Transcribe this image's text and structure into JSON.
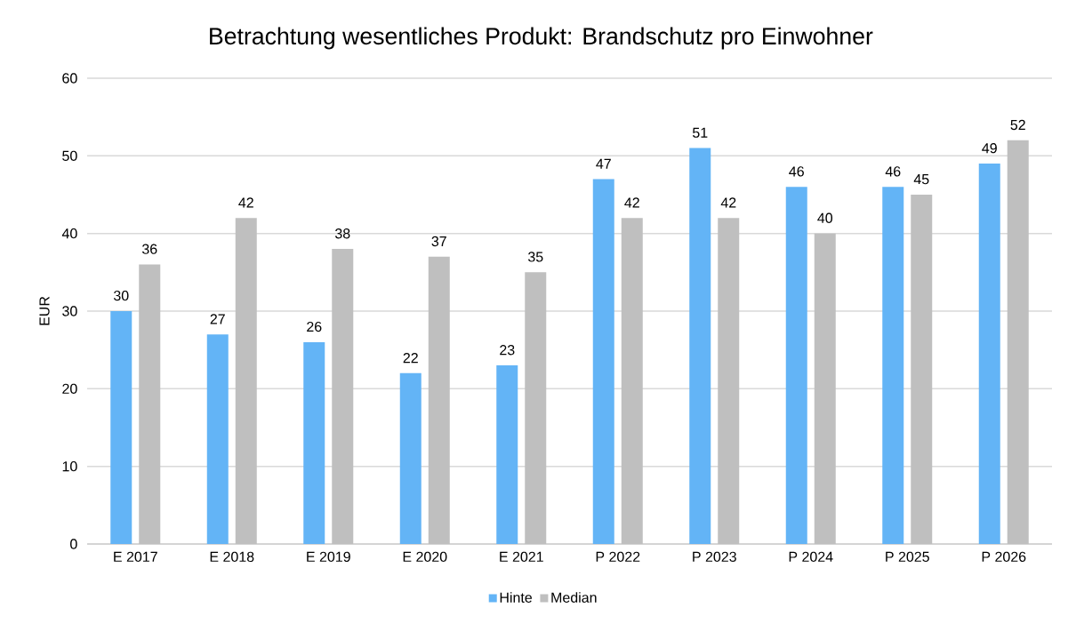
{
  "chart_data": {
    "type": "bar",
    "title": "Betrachtung wesentliches Produkt: Brandschutz pro Einwohner",
    "ylabel": "EUR",
    "categories": [
      "E 2017",
      "E 2018",
      "E 2019",
      "E 2020",
      "E 2021",
      "P 2022",
      "P 2023",
      "P 2024",
      "P 2025",
      "P 2026"
    ],
    "series": [
      {
        "name": "Hinte",
        "color": "#63b4f6",
        "values": [
          30,
          27,
          26,
          22,
          23,
          47,
          51,
          46,
          46,
          49
        ]
      },
      {
        "name": "Median",
        "color": "#bfbfbf",
        "values": [
          36,
          42,
          38,
          37,
          35,
          42,
          42,
          40,
          45,
          52
        ]
      }
    ],
    "ylim": [
      0,
      60
    ],
    "yticks": [
      0,
      10,
      20,
      30,
      40,
      50,
      60
    ],
    "grid": "y",
    "legend": "bottom",
    "data_labels": true
  }
}
